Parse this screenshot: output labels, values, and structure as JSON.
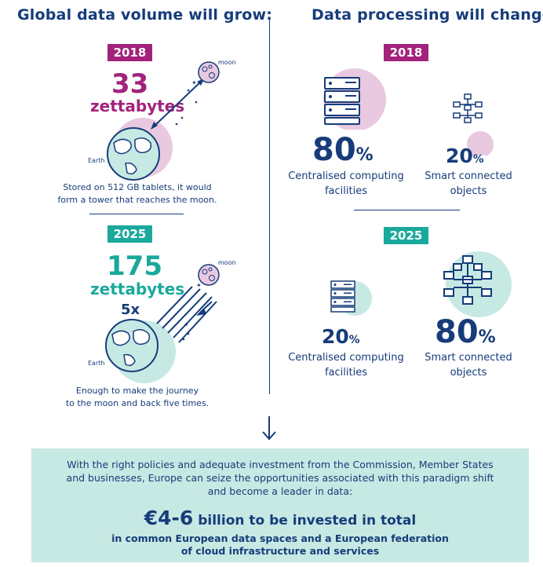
{
  "left": {
    "heading": "Global data volume will grow:",
    "y2018": {
      "year": "2018",
      "amount": "33",
      "unit": "zettabytes",
      "moon_label": "moon",
      "earth_label": "Earth",
      "caption_line1": "Stored on 512 GB tablets, it would",
      "caption_line2": "form a tower that reaches the moon."
    },
    "y2025": {
      "year": "2025",
      "amount": "175",
      "unit": "zettabytes",
      "multiplier": "5x",
      "moon_label": "moon",
      "earth_label": "Earth",
      "caption_line1": "Enough to make the journey",
      "caption_line2": "to the moon and back five times."
    }
  },
  "right": {
    "heading": "Data processing will change:",
    "y2018": {
      "year": "2018",
      "central_pct": "80",
      "central_label_line1": "Centralised computing",
      "central_label_line2": "facilities",
      "smart_pct": "20",
      "smart_label_line1": "Smart connected",
      "smart_label_line2": "objects"
    },
    "y2025": {
      "year": "2025",
      "central_pct": "20",
      "central_label_line1": "Centralised computing",
      "central_label_line2": "facilities",
      "smart_pct": "80",
      "smart_label_line1": "Smart connected",
      "smart_label_line2": "objects"
    },
    "percent_sign": "%"
  },
  "bottom": {
    "line1": "With the right policies and adequate investment from the Commission, Member States",
    "line2": "and businesses, Europe can seize the opportunities associated with this paradigm shift",
    "line3": "and become a leader in data:",
    "amount": "€4-6",
    "amount_rest": " billion to be invested in total",
    "sub_line1": "in common European data spaces and a European federation",
    "sub_line2": "of cloud infrastructure and services"
  },
  "colors": {
    "navy": "#163c7a",
    "purple": "#a2227c",
    "teal": "#1aa99b",
    "light_purple": "#e8c9e0",
    "light_teal": "#c7e9e3"
  },
  "icons": [
    "moon-icon",
    "earth-icon",
    "server-icon",
    "network-icon",
    "arrow-down-icon"
  ]
}
